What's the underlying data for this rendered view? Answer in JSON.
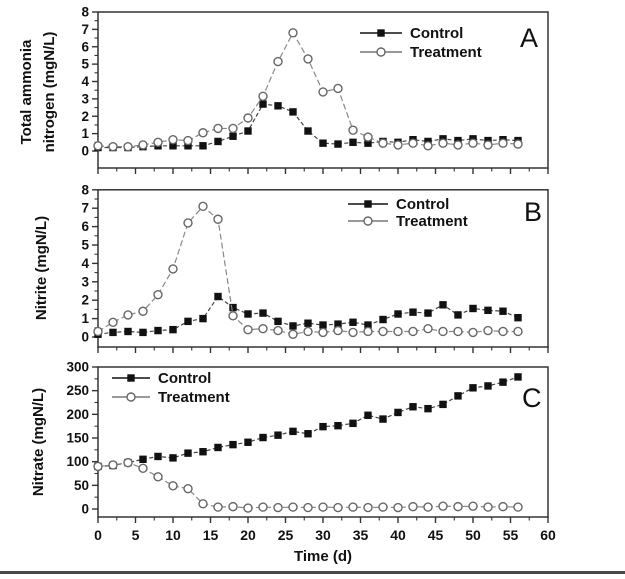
{
  "figure": {
    "xlabel": "Time (d)",
    "background": "#ffffff",
    "frame_color": "#333333",
    "text_color": "#111111"
  },
  "legend": {
    "control_label": "Control",
    "treatment_label": "Treatment"
  },
  "colors": {
    "control": "#111111",
    "treatment": "#777777"
  },
  "chart_data": [
    {
      "type": "line",
      "panel_label": "A",
      "ylabel": "Total ammonia nitrogen (mgN/L)",
      "ylabel_lines": [
        "Total ammonia",
        "nitrogen (mgN/L)"
      ],
      "xlabel": "",
      "ylim": [
        0,
        8
      ],
      "yticks": [
        0,
        1,
        2,
        3,
        4,
        5,
        6,
        7,
        8
      ],
      "xlim": [
        0,
        60
      ],
      "xticks": [
        0,
        5,
        10,
        15,
        20,
        25,
        30,
        35,
        40,
        45,
        50,
        55,
        60
      ],
      "legend_position": "top-center",
      "grid": false,
      "x": [
        0,
        2,
        4,
        6,
        8,
        10,
        12,
        14,
        16,
        18,
        20,
        22,
        24,
        26,
        28,
        30,
        32,
        34,
        36,
        38,
        40,
        42,
        44,
        46,
        48,
        50,
        52,
        54,
        56
      ],
      "series": [
        {
          "name": "Control",
          "marker": "filled-square",
          "color": "#111111",
          "values": [
            0.2,
            0.2,
            0.2,
            0.25,
            0.3,
            0.3,
            0.3,
            0.3,
            0.55,
            0.85,
            1.15,
            2.7,
            2.6,
            2.25,
            1.15,
            0.45,
            0.4,
            0.5,
            0.45,
            0.55,
            0.5,
            0.65,
            0.55,
            0.7,
            0.6,
            0.7,
            0.6,
            0.65,
            0.6
          ]
        },
        {
          "name": "Treatment",
          "marker": "open-circle",
          "color": "#777777",
          "values": [
            0.3,
            0.25,
            0.25,
            0.35,
            0.5,
            0.65,
            0.6,
            1.05,
            1.3,
            1.3,
            1.9,
            3.15,
            5.15,
            6.8,
            5.3,
            3.4,
            3.6,
            1.2,
            0.8,
            0.45,
            0.35,
            0.45,
            0.3,
            0.45,
            0.35,
            0.45,
            0.35,
            0.45,
            0.4
          ]
        }
      ]
    },
    {
      "type": "line",
      "panel_label": "B",
      "ylabel": "Nitrite (mgN/L)",
      "ylabel_lines": [
        "Nitrite (mgN/L)"
      ],
      "xlabel": "",
      "ylim": [
        0,
        8
      ],
      "yticks": [
        0,
        1,
        2,
        3,
        4,
        5,
        6,
        7,
        8
      ],
      "xlim": [
        0,
        60
      ],
      "xticks": [
        0,
        5,
        10,
        15,
        20,
        25,
        30,
        35,
        40,
        45,
        50,
        55,
        60
      ],
      "legend_position": "top-center",
      "grid": false,
      "x": [
        0,
        2,
        4,
        6,
        8,
        10,
        12,
        14,
        16,
        18,
        20,
        22,
        24,
        26,
        28,
        30,
        32,
        34,
        36,
        38,
        40,
        42,
        44,
        46,
        48,
        50,
        52,
        54,
        56
      ],
      "series": [
        {
          "name": "Control",
          "marker": "filled-square",
          "color": "#111111",
          "values": [
            0.15,
            0.25,
            0.3,
            0.25,
            0.35,
            0.4,
            0.85,
            1.0,
            2.2,
            1.6,
            1.25,
            1.3,
            0.85,
            0.6,
            0.75,
            0.65,
            0.7,
            0.8,
            0.65,
            0.95,
            1.25,
            1.35,
            1.3,
            1.75,
            1.2,
            1.55,
            1.45,
            1.4,
            1.05
          ]
        },
        {
          "name": "Treatment",
          "marker": "open-circle",
          "color": "#777777",
          "values": [
            0.3,
            0.8,
            1.2,
            1.4,
            2.3,
            3.7,
            6.2,
            7.1,
            6.4,
            1.15,
            0.4,
            0.45,
            0.35,
            0.15,
            0.3,
            0.25,
            0.35,
            0.25,
            0.3,
            0.3,
            0.3,
            0.3,
            0.45,
            0.3,
            0.3,
            0.25,
            0.35,
            0.3,
            0.3
          ]
        }
      ]
    },
    {
      "type": "line",
      "panel_label": "C",
      "ylabel": "Nitrate (mgN/L)",
      "ylabel_lines": [
        "Nitrate (mgN/L)"
      ],
      "xlabel": "Time (d)",
      "ylim": [
        0,
        300
      ],
      "yticks": [
        0,
        50,
        100,
        150,
        200,
        250,
        300
      ],
      "xlim": [
        0,
        60
      ],
      "xticks": [
        0,
        5,
        10,
        15,
        20,
        25,
        30,
        35,
        40,
        45,
        50,
        55,
        60
      ],
      "legend_position": "top-left",
      "grid": false,
      "x": [
        0,
        2,
        4,
        6,
        8,
        10,
        12,
        14,
        16,
        18,
        20,
        22,
        24,
        26,
        28,
        30,
        32,
        34,
        36,
        38,
        40,
        42,
        44,
        46,
        48,
        50,
        52,
        54,
        56
      ],
      "series": [
        {
          "name": "Control",
          "marker": "filled-square",
          "color": "#111111",
          "values": [
            90,
            92,
            98,
            105,
            111,
            108,
            118,
            121,
            130,
            136,
            141,
            151,
            156,
            164,
            159,
            174,
            176,
            181,
            198,
            190,
            204,
            216,
            212,
            221,
            239,
            256,
            260,
            268,
            279
          ]
        },
        {
          "name": "Treatment",
          "marker": "open-circle",
          "color": "#777777",
          "values": [
            90,
            93,
            98,
            86,
            68,
            49,
            43,
            11,
            4,
            5,
            2,
            4,
            3,
            4,
            3,
            4,
            3,
            4,
            3,
            4,
            3,
            5,
            4,
            6,
            5,
            6,
            4,
            5,
            4
          ]
        }
      ]
    }
  ]
}
